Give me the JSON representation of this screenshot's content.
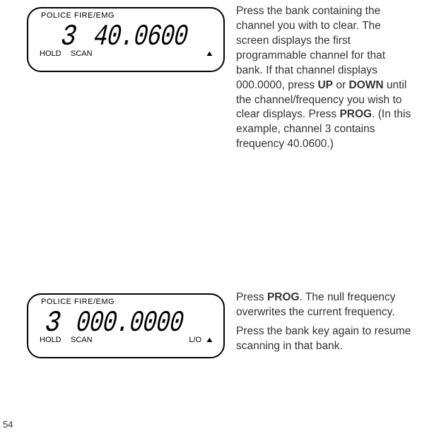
{
  "lcd1": {
    "top": "POLICE  FIRE/EMG",
    "channel": "3",
    "frequency": "40.0600",
    "hold": "HOLD",
    "scan": "SCAN",
    "lo": "",
    "tri": "▲"
  },
  "lcd2": {
    "top": "POLICE  FIRE/EMG",
    "channel": "3",
    "frequency": "000.0000",
    "hold": "HOLD",
    "scan": "SCAN",
    "lo": "L/O",
    "tri": "▲"
  },
  "para1a": "Press the bank containing the channel you with to clear. The screen displays the first programmable channel for that bank. If that channel displays 000.0000, press ",
  "para1_up": "UP",
  "para1b": " or ",
  "para1_down": "DOWN",
  "para1c": " until the channel/frequency you wish to clear displays.  Press ",
  "para1_prog": "PROG",
  "para1d": ". (In this example, channel 3 contains frequency 40.0600.)",
  "para2a": "Press ",
  "para2_prog": "PROG",
  "para2b": ". The null frequency overwrites the current frequency.",
  "para3": "Press the bank key again to resume scanning in that bank.",
  "pagenum": "54"
}
